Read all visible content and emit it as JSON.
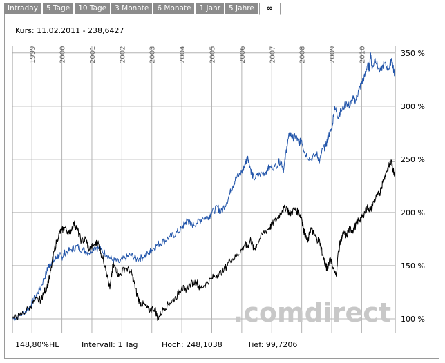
{
  "tabs": [
    {
      "label": "Intraday"
    },
    {
      "label": "5 Tage"
    },
    {
      "label": "10 Tage"
    },
    {
      "label": "3 Monate"
    },
    {
      "label": "6 Monate"
    },
    {
      "label": "1 Jahr"
    },
    {
      "label": "5 Jahre"
    },
    {
      "label": "∞"
    }
  ],
  "kurs": "Kurs: 11.02.2011 - 238,6427",
  "footer": {
    "change": "148,80%HL",
    "intervall": "Intervall: 1 Tag",
    "hoch": "Hoch: 248,1038",
    "tief": "Tief: 99,7206"
  },
  "watermark": ".comdirect",
  "colors": {
    "series_black": "#000000",
    "series_blue": "#2255aa",
    "grid": "#b4b4b4",
    "watermark": "#c8c8c8"
  },
  "chart_data": {
    "type": "line",
    "xlim": [
      1998.35,
      2011.12
    ],
    "ylim": [
      87,
      357
    ],
    "y_ticks": [
      {
        "value": 100,
        "label": "100 %"
      },
      {
        "value": 150,
        "label": "150 %"
      },
      {
        "value": 200,
        "label": "200 %"
      },
      {
        "value": 250,
        "label": "250 %"
      },
      {
        "value": 300,
        "label": "300 %"
      },
      {
        "value": 350,
        "label": "350 %"
      }
    ],
    "x_ticks": [
      {
        "value": 1999,
        "label": "1999"
      },
      {
        "value": 2000,
        "label": "2000"
      },
      {
        "value": 2001,
        "label": "2001"
      },
      {
        "value": 2002,
        "label": "2002"
      },
      {
        "value": 2003,
        "label": "2003"
      },
      {
        "value": 2004,
        "label": "2004"
      },
      {
        "value": 2005,
        "label": "2005"
      },
      {
        "value": 2006,
        "label": "2006"
      },
      {
        "value": 2007,
        "label": "2007"
      },
      {
        "value": 2008,
        "label": "2008"
      },
      {
        "value": 2009,
        "label": "2009"
      },
      {
        "value": 2010,
        "label": "2010"
      }
    ],
    "grid": true,
    "series": [
      {
        "color": "#2255aa",
        "points": [
          [
            1998.35,
            100
          ],
          [
            1998.6,
            103
          ],
          [
            1998.9,
            110
          ],
          [
            1999.1,
            120
          ],
          [
            1999.3,
            130
          ],
          [
            1999.5,
            145
          ],
          [
            1999.6,
            152
          ],
          [
            1999.75,
            155
          ],
          [
            1999.9,
            160
          ],
          [
            2000.0,
            158
          ],
          [
            2000.1,
            162
          ],
          [
            2000.3,
            165
          ],
          [
            2000.5,
            168
          ],
          [
            2000.7,
            165
          ],
          [
            2000.9,
            162
          ],
          [
            2001.1,
            168
          ],
          [
            2001.3,
            165
          ],
          [
            2001.5,
            160
          ],
          [
            2001.7,
            155
          ],
          [
            2001.9,
            153
          ],
          [
            2002.1,
            157
          ],
          [
            2002.3,
            160
          ],
          [
            2002.5,
            156
          ],
          [
            2002.7,
            158
          ],
          [
            2002.9,
            162
          ],
          [
            2003.0,
            165
          ],
          [
            2003.2,
            170
          ],
          [
            2003.4,
            173
          ],
          [
            2003.6,
            177
          ],
          [
            2003.8,
            180
          ],
          [
            2004.0,
            185
          ],
          [
            2004.1,
            190
          ],
          [
            2004.2,
            193
          ],
          [
            2004.3,
            188
          ],
          [
            2004.5,
            190
          ],
          [
            2004.7,
            195
          ],
          [
            2004.9,
            196
          ],
          [
            2005.0,
            200
          ],
          [
            2005.2,
            205
          ],
          [
            2005.3,
            200
          ],
          [
            2005.5,
            210
          ],
          [
            2005.7,
            225
          ],
          [
            2005.8,
            232
          ],
          [
            2006.0,
            238
          ],
          [
            2006.1,
            245
          ],
          [
            2006.2,
            253
          ],
          [
            2006.3,
            240
          ],
          [
            2006.4,
            232
          ],
          [
            2006.6,
            236
          ],
          [
            2006.8,
            238
          ],
          [
            2006.9,
            242
          ],
          [
            2007.1,
            243
          ],
          [
            2007.3,
            249
          ],
          [
            2007.4,
            240
          ],
          [
            2007.5,
            262
          ],
          [
            2007.6,
            275
          ],
          [
            2007.7,
            270
          ],
          [
            2007.8,
            272
          ],
          [
            2007.9,
            265
          ],
          [
            2008.0,
            268
          ],
          [
            2008.1,
            256
          ],
          [
            2008.3,
            250
          ],
          [
            2008.5,
            255
          ],
          [
            2008.6,
            248
          ],
          [
            2008.7,
            260
          ],
          [
            2008.8,
            262
          ],
          [
            2008.9,
            273
          ],
          [
            2009.0,
            278
          ],
          [
            2009.1,
            300
          ],
          [
            2009.2,
            290
          ],
          [
            2009.3,
            295
          ],
          [
            2009.5,
            303
          ],
          [
            2009.6,
            300
          ],
          [
            2009.7,
            307
          ],
          [
            2009.8,
            305
          ],
          [
            2009.9,
            315
          ],
          [
            2010.0,
            322
          ],
          [
            2010.1,
            328
          ],
          [
            2010.2,
            340
          ],
          [
            2010.25,
            335
          ],
          [
            2010.3,
            350
          ],
          [
            2010.35,
            335
          ],
          [
            2010.45,
            345
          ],
          [
            2010.6,
            332
          ],
          [
            2010.75,
            340
          ],
          [
            2010.9,
            335
          ],
          [
            2011.0,
            345
          ],
          [
            2011.07,
            333
          ],
          [
            2011.12,
            330
          ]
        ]
      },
      {
        "color": "#000000",
        "points": [
          [
            1998.35,
            100
          ],
          [
            1998.6,
            103
          ],
          [
            1998.9,
            110
          ],
          [
            1999.1,
            117
          ],
          [
            1999.3,
            118
          ],
          [
            1999.4,
            125
          ],
          [
            1999.5,
            130
          ],
          [
            1999.6,
            140
          ],
          [
            1999.75,
            165
          ],
          [
            1999.9,
            180
          ],
          [
            2000.0,
            183
          ],
          [
            2000.1,
            186
          ],
          [
            2000.25,
            180
          ],
          [
            2000.4,
            190
          ],
          [
            2000.5,
            185
          ],
          [
            2000.65,
            173
          ],
          [
            2000.8,
            175
          ],
          [
            2000.9,
            165
          ],
          [
            2001.1,
            170
          ],
          [
            2001.2,
            172
          ],
          [
            2001.3,
            162
          ],
          [
            2001.45,
            150
          ],
          [
            2001.6,
            128
          ],
          [
            2001.7,
            150
          ],
          [
            2001.8,
            148
          ],
          [
            2001.9,
            140
          ],
          [
            2002.1,
            148
          ],
          [
            2002.3,
            145
          ],
          [
            2002.4,
            135
          ],
          [
            2002.5,
            123
          ],
          [
            2002.6,
            115
          ],
          [
            2002.75,
            113
          ],
          [
            2002.9,
            108
          ],
          [
            2003.1,
            110
          ],
          [
            2003.2,
            100
          ],
          [
            2003.4,
            110
          ],
          [
            2003.6,
            115
          ],
          [
            2003.8,
            120
          ],
          [
            2004.0,
            130
          ],
          [
            2004.1,
            127
          ],
          [
            2004.3,
            133
          ],
          [
            2004.5,
            135
          ],
          [
            2004.6,
            128
          ],
          [
            2004.8,
            133
          ],
          [
            2005.0,
            138
          ],
          [
            2005.2,
            142
          ],
          [
            2005.4,
            145
          ],
          [
            2005.6,
            155
          ],
          [
            2005.8,
            158
          ],
          [
            2006.0,
            165
          ],
          [
            2006.1,
            170
          ],
          [
            2006.2,
            168
          ],
          [
            2006.3,
            175
          ],
          [
            2006.4,
            165
          ],
          [
            2006.5,
            170
          ],
          [
            2006.7,
            180
          ],
          [
            2006.9,
            185
          ],
          [
            2007.0,
            188
          ],
          [
            2007.2,
            195
          ],
          [
            2007.35,
            202
          ],
          [
            2007.5,
            205
          ],
          [
            2007.6,
            198
          ],
          [
            2007.75,
            203
          ],
          [
            2007.9,
            200
          ],
          [
            2008.0,
            195
          ],
          [
            2008.05,
            185
          ],
          [
            2008.1,
            180
          ],
          [
            2008.2,
            172
          ],
          [
            2008.3,
            185
          ],
          [
            2008.4,
            180
          ],
          [
            2008.5,
            175
          ],
          [
            2008.6,
            173
          ],
          [
            2008.7,
            160
          ],
          [
            2008.8,
            150
          ],
          [
            2008.85,
            147
          ],
          [
            2008.95,
            158
          ],
          [
            2009.05,
            148
          ],
          [
            2009.15,
            140
          ],
          [
            2009.2,
            158
          ],
          [
            2009.3,
            175
          ],
          [
            2009.4,
            180
          ],
          [
            2009.5,
            178
          ],
          [
            2009.6,
            185
          ],
          [
            2009.7,
            183
          ],
          [
            2009.8,
            188
          ],
          [
            2009.9,
            193
          ],
          [
            2010.0,
            195
          ],
          [
            2010.1,
            200
          ],
          [
            2010.2,
            205
          ],
          [
            2010.3,
            202
          ],
          [
            2010.4,
            210
          ],
          [
            2010.5,
            215
          ],
          [
            2010.6,
            218
          ],
          [
            2010.7,
            228
          ],
          [
            2010.8,
            237
          ],
          [
            2010.9,
            243
          ],
          [
            2011.0,
            248
          ],
          [
            2011.05,
            240
          ],
          [
            2011.1,
            237
          ],
          [
            2011.12,
            238
          ]
        ]
      }
    ]
  }
}
